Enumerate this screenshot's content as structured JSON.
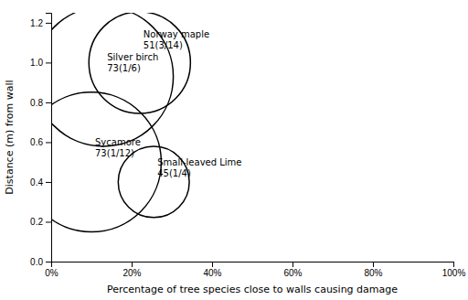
{
  "chart_data": {
    "type": "bubble",
    "xlabel": "Percentage of tree species close to walls causing damage",
    "ylabel": "Distance (m) from wall",
    "names": [
      "Silver birch",
      "Norway maple",
      "Sycamore",
      "Small-leaved Lime"
    ],
    "annotations": [
      "73(1/6)",
      "51(3/14)",
      "73(1/12)",
      "45(1/4)"
    ],
    "x": [
      0.13,
      0.22,
      0.1,
      0.255
    ],
    "values": [
      0.93,
      1.0,
      0.5,
      0.4
    ],
    "sizes": [
      55,
      40,
      55,
      28
    ],
    "color": "#000000",
    "xlim": [
      0.0,
      1.0
    ],
    "ylim": [
      0.0,
      1.25
    ],
    "xticks": [
      {
        "value": 0.0,
        "label": "0%"
      },
      {
        "value": 0.2,
        "label": "20%"
      },
      {
        "value": 0.4,
        "label": "40%"
      },
      {
        "value": 0.6,
        "label": "60%"
      },
      {
        "value": 0.8,
        "label": "80%"
      },
      {
        "value": 1.0,
        "label": "100%"
      }
    ],
    "yticks": [
      {
        "value": 0.0,
        "label": "0.0"
      },
      0.2,
      0.4,
      0.6,
      0.8,
      {
        "value": 1.0,
        "label": "1.0"
      },
      1.2
    ],
    "grid": false
  }
}
